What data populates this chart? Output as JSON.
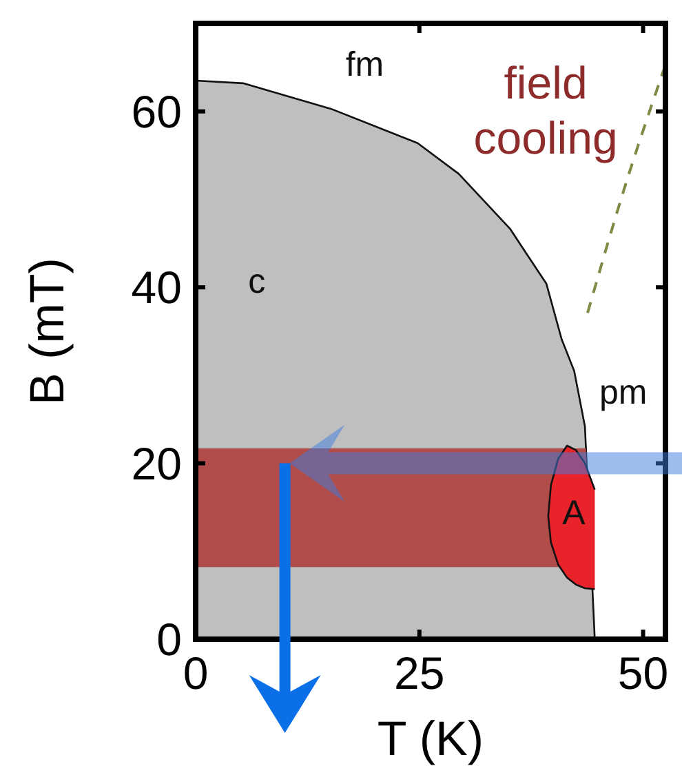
{
  "chart_data": {
    "type": "area",
    "xlabel": "T (K)",
    "ylabel": "B (mT)",
    "xlim": [
      0,
      52.5
    ],
    "ylim": [
      0,
      70
    ],
    "xticks": [
      0,
      25,
      50
    ],
    "yticks": [
      0,
      20,
      40,
      60
    ],
    "grid": false,
    "marker": "none",
    "series": [
      {
        "color": "#bfbfbf",
        "x": [
          0,
          5.3,
          15.1,
          24.8,
          29.4,
          35.1,
          39.2,
          40.9,
          42.3,
          43.5,
          44.6
        ],
        "values": [
          63.5,
          63.2,
          60.3,
          56.4,
          52.9,
          46.7,
          40.4,
          34.1,
          30.5,
          24.2,
          0
        ]
      },
      {
        "color": "#e8232a",
        "x": [
          44.6,
          43.5,
          42.5,
          41.5,
          40.5,
          39.7,
          39.4,
          39.7,
          40.5,
          41.5,
          42.5,
          43.5,
          44.6
        ],
        "values": [
          17,
          20,
          21.5,
          22,
          20.5,
          17.5,
          14,
          11,
          8.5,
          7,
          6.2,
          5.8,
          5.7
        ]
      },
      {
        "type": "line",
        "color": "#7f8a45",
        "line_style": "dashed",
        "x": [
          43.8,
          47.8,
          52.3
        ],
        "values": [
          37.1,
          50.9,
          64.7
        ]
      }
    ],
    "bands": [
      {
        "axis": "y",
        "from": 8.2,
        "to": 21.7,
        "color": "#b04c4a"
      }
    ],
    "annotations": [
      "fm",
      "field cooling",
      "c",
      "pm",
      "A"
    ]
  }
}
